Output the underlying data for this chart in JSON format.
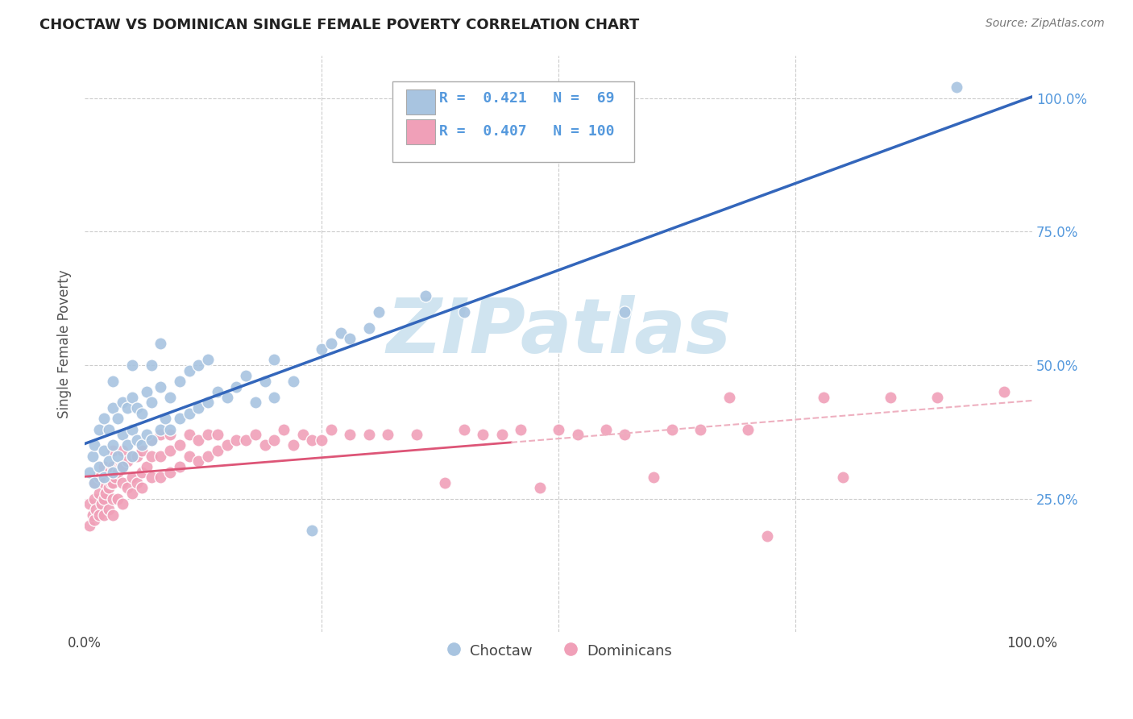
{
  "title": "CHOCTAW VS DOMINICAN SINGLE FEMALE POVERTY CORRELATION CHART",
  "source": "Source: ZipAtlas.com",
  "ylabel": "Single Female Poverty",
  "yticks": [
    "25.0%",
    "50.0%",
    "75.0%",
    "100.0%"
  ],
  "ytick_vals": [
    0.25,
    0.5,
    0.75,
    1.0
  ],
  "legend_blue_R": "0.421",
  "legend_blue_N": "69",
  "legend_pink_R": "0.407",
  "legend_pink_N": "100",
  "legend_label_blue": "Choctaw",
  "legend_label_pink": "Dominicans",
  "blue_color": "#A8C4E0",
  "pink_color": "#F0A0B8",
  "line_blue": "#3366BB",
  "line_pink": "#DD5577",
  "line_pink_dash": "#EEB0C0",
  "watermark_color": "#D0E4F0",
  "bg_color": "#FFFFFF",
  "grid_color": "#CCCCCC",
  "right_axis_color": "#5599DD",
  "choctaw_x": [
    0.005,
    0.008,
    0.01,
    0.01,
    0.015,
    0.015,
    0.02,
    0.02,
    0.02,
    0.025,
    0.025,
    0.03,
    0.03,
    0.03,
    0.03,
    0.035,
    0.035,
    0.04,
    0.04,
    0.04,
    0.045,
    0.045,
    0.05,
    0.05,
    0.05,
    0.05,
    0.055,
    0.055,
    0.06,
    0.06,
    0.065,
    0.065,
    0.07,
    0.07,
    0.07,
    0.08,
    0.08,
    0.08,
    0.085,
    0.09,
    0.09,
    0.1,
    0.1,
    0.11,
    0.11,
    0.12,
    0.12,
    0.13,
    0.13,
    0.14,
    0.15,
    0.16,
    0.17,
    0.18,
    0.19,
    0.2,
    0.2,
    0.22,
    0.24,
    0.25,
    0.26,
    0.27,
    0.28,
    0.3,
    0.31,
    0.36,
    0.4,
    0.57,
    0.92
  ],
  "choctaw_y": [
    0.3,
    0.33,
    0.28,
    0.35,
    0.31,
    0.38,
    0.29,
    0.34,
    0.4,
    0.32,
    0.38,
    0.3,
    0.35,
    0.42,
    0.47,
    0.33,
    0.4,
    0.31,
    0.37,
    0.43,
    0.35,
    0.42,
    0.33,
    0.38,
    0.44,
    0.5,
    0.36,
    0.42,
    0.35,
    0.41,
    0.37,
    0.45,
    0.36,
    0.43,
    0.5,
    0.38,
    0.46,
    0.54,
    0.4,
    0.38,
    0.44,
    0.4,
    0.47,
    0.41,
    0.49,
    0.42,
    0.5,
    0.43,
    0.51,
    0.45,
    0.44,
    0.46,
    0.48,
    0.43,
    0.47,
    0.44,
    0.51,
    0.47,
    0.19,
    0.53,
    0.54,
    0.56,
    0.55,
    0.57,
    0.6,
    0.63,
    0.6,
    0.6,
    1.02
  ],
  "dominican_x": [
    0.005,
    0.005,
    0.008,
    0.01,
    0.01,
    0.01,
    0.012,
    0.015,
    0.015,
    0.015,
    0.018,
    0.02,
    0.02,
    0.02,
    0.02,
    0.022,
    0.025,
    0.025,
    0.025,
    0.028,
    0.03,
    0.03,
    0.03,
    0.03,
    0.03,
    0.032,
    0.035,
    0.035,
    0.038,
    0.04,
    0.04,
    0.04,
    0.04,
    0.045,
    0.045,
    0.05,
    0.05,
    0.05,
    0.055,
    0.055,
    0.06,
    0.06,
    0.06,
    0.065,
    0.07,
    0.07,
    0.07,
    0.08,
    0.08,
    0.08,
    0.09,
    0.09,
    0.09,
    0.1,
    0.1,
    0.11,
    0.11,
    0.12,
    0.12,
    0.13,
    0.13,
    0.14,
    0.14,
    0.15,
    0.16,
    0.17,
    0.18,
    0.19,
    0.2,
    0.21,
    0.22,
    0.23,
    0.24,
    0.25,
    0.26,
    0.28,
    0.3,
    0.32,
    0.35,
    0.38,
    0.4,
    0.42,
    0.44,
    0.46,
    0.48,
    0.5,
    0.52,
    0.55,
    0.57,
    0.6,
    0.62,
    0.65,
    0.68,
    0.7,
    0.72,
    0.78,
    0.8,
    0.85,
    0.9,
    0.97
  ],
  "dominican_y": [
    0.2,
    0.24,
    0.22,
    0.21,
    0.25,
    0.28,
    0.23,
    0.22,
    0.26,
    0.29,
    0.24,
    0.22,
    0.25,
    0.28,
    0.31,
    0.26,
    0.23,
    0.27,
    0.3,
    0.28,
    0.22,
    0.25,
    0.28,
    0.31,
    0.34,
    0.29,
    0.25,
    0.3,
    0.31,
    0.24,
    0.28,
    0.31,
    0.34,
    0.27,
    0.32,
    0.26,
    0.29,
    0.33,
    0.28,
    0.33,
    0.27,
    0.3,
    0.34,
    0.31,
    0.29,
    0.33,
    0.36,
    0.29,
    0.33,
    0.37,
    0.3,
    0.34,
    0.37,
    0.31,
    0.35,
    0.33,
    0.37,
    0.32,
    0.36,
    0.33,
    0.37,
    0.34,
    0.37,
    0.35,
    0.36,
    0.36,
    0.37,
    0.35,
    0.36,
    0.38,
    0.35,
    0.37,
    0.36,
    0.36,
    0.38,
    0.37,
    0.37,
    0.37,
    0.37,
    0.28,
    0.38,
    0.37,
    0.37,
    0.38,
    0.27,
    0.38,
    0.37,
    0.38,
    0.37,
    0.29,
    0.38,
    0.38,
    0.44,
    0.38,
    0.18,
    0.44,
    0.29,
    0.44,
    0.44,
    0.45
  ]
}
